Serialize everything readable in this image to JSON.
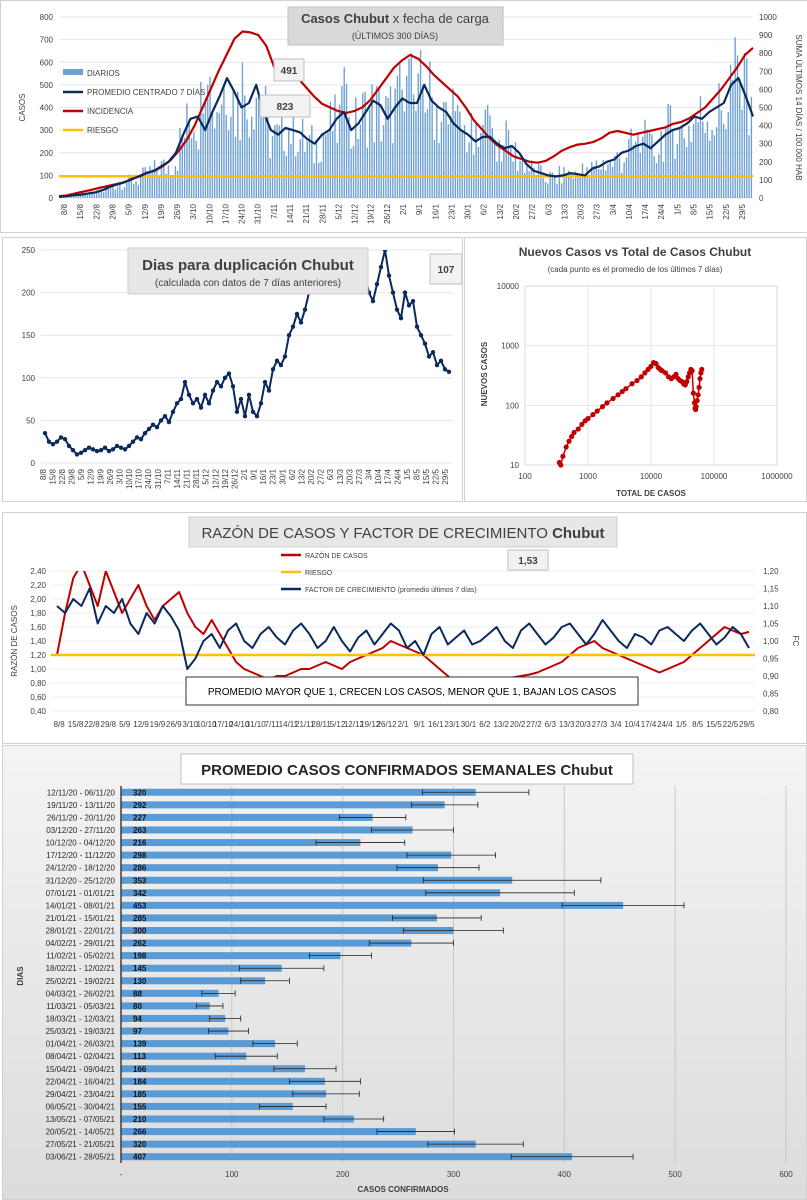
{
  "colors": {
    "diarios": "#6ea1d4",
    "promedio": "#0b2a5c",
    "incidencia": "#c00000",
    "riesgo": "#ffc000",
    "scatter": "#c00000",
    "weekly_bar": "#5b9bd5"
  },
  "chart_data": [
    {
      "type": "bar",
      "title": "Casos Chubut x fecha de carga",
      "title_bold": "Casos Chubut",
      "title_rest": "x fecha de carga",
      "subtitle": "(ÚLTIMOS 300 DÍAS)",
      "ylabel": "CASOS",
      "y2label": "SUMA ÚLTIMOS 14 DÍAS / 100.000 HAB",
      "ylim": [
        0,
        800
      ],
      "y2lim": [
        0,
        1000
      ],
      "yticks": [
        "800",
        "700",
        "600",
        "500",
        "400",
        "300",
        "200",
        "100",
        "0"
      ],
      "y2ticks": [
        "1000",
        "900",
        "800",
        "700",
        "600",
        "500",
        "400",
        "300",
        "200",
        "100",
        "0"
      ],
      "x_ticks": [
        "8/8",
        "15/8",
        "22/8",
        "29/8",
        "5/9",
        "12/9",
        "19/9",
        "26/9",
        "3/10",
        "10/10",
        "17/10",
        "24/10",
        "31/10",
        "7/11",
        "14/11",
        "21/11",
        "28/11",
        "5/12",
        "12/12",
        "19/12",
        "26/12",
        "2/1",
        "9/1",
        "16/1",
        "23/1",
        "30/1",
        "6/2",
        "13/2",
        "20/2",
        "27/2",
        "6/3",
        "13/3",
        "20/3",
        "27/3",
        "3/4",
        "10/4",
        "17/4",
        "24/4",
        "1/5",
        "8/5",
        "15/5",
        "22/5",
        "29/5"
      ],
      "legend": [
        "DIARIOS",
        "PROMEDIO CENTRADO 7 DÍAS",
        "INCIDENCIA",
        "RIESGO"
      ],
      "annotations": [
        "491",
        "823"
      ],
      "riesgo_value": 120,
      "series": [
        {
          "name": "PROMEDIO CENTRADO 7 DÍAS",
          "values": [
            5,
            8,
            12,
            15,
            20,
            25,
            35,
            50,
            60,
            70,
            85,
            95,
            110,
            120,
            140,
            160,
            200,
            280,
            350,
            360,
            300,
            380,
            450,
            530,
            470,
            400,
            420,
            500,
            380,
            300,
            280,
            310,
            300,
            290,
            260,
            240,
            280,
            300,
            350,
            380,
            300,
            330,
            380,
            430,
            410,
            350,
            400,
            440,
            420,
            420,
            500,
            430,
            400,
            380,
            330,
            300,
            280,
            250,
            270,
            270,
            240,
            220,
            230,
            200,
            150,
            120,
            110,
            100,
            95,
            100,
            110,
            105,
            100,
            130,
            140,
            160,
            170,
            200,
            210,
            230,
            240,
            220,
            250,
            280,
            300,
            310,
            330,
            360,
            350,
            380,
            400,
            420,
            500,
            530,
            450,
            360
          ]
        },
        {
          "name": "INCIDENCIA",
          "values": [
            10,
            15,
            25,
            35,
            45,
            55,
            65,
            75,
            85,
            100,
            120,
            140,
            150,
            175,
            210,
            260,
            320,
            400,
            500,
            600,
            700,
            790,
            880,
            920,
            915,
            900,
            840,
            720,
            690,
            700,
            660,
            610,
            560,
            520,
            500,
            480,
            470,
            480,
            500,
            540,
            600,
            660,
            720,
            760,
            790,
            770,
            730,
            680,
            640,
            600,
            560,
            500,
            430,
            380,
            330,
            290,
            260,
            230,
            215,
            200,
            195,
            205,
            230,
            260,
            280,
            295,
            300,
            310,
            330,
            360,
            370,
            360,
            350,
            360,
            370,
            380,
            390,
            410,
            420,
            440,
            470,
            500,
            550,
            600,
            660,
            720,
            790,
            830
          ]
        }
      ]
    },
    {
      "type": "line",
      "title": "Dias para duplicación Chubut",
      "subtitle": "(calculada con datos de 7 días anteriores)",
      "annotation": "107",
      "ylim": [
        0,
        250
      ],
      "yticks": [
        "250",
        "200",
        "150",
        "100",
        "50",
        "0"
      ],
      "x_ticks": [
        "8/8",
        "15/8",
        "22/8",
        "29/8",
        "5/9",
        "12/9",
        "19/9",
        "26/9",
        "3/10",
        "10/10",
        "17/10",
        "24/10",
        "31/10",
        "7/11",
        "14/11",
        "21/11",
        "28/11",
        "5/12",
        "12/12",
        "19/12",
        "26/12",
        "2/1",
        "9/1",
        "16/1",
        "23/1",
        "30/1",
        "6/2",
        "13/2",
        "20/2",
        "27/2",
        "6/3",
        "13/3",
        "20/3",
        "27/3",
        "3/4",
        "10/4",
        "17/4",
        "24/4",
        "1/5",
        "8/5",
        "15/5",
        "22/5",
        "29/5"
      ],
      "values": [
        35,
        25,
        22,
        25,
        30,
        28,
        20,
        15,
        10,
        12,
        15,
        18,
        16,
        14,
        15,
        18,
        14,
        16,
        20,
        18,
        16,
        20,
        25,
        30,
        28,
        35,
        40,
        45,
        42,
        50,
        55,
        48,
        60,
        70,
        75,
        95,
        80,
        70,
        75,
        65,
        80,
        70,
        85,
        95,
        90,
        100,
        105,
        90,
        60,
        75,
        55,
        80,
        60,
        55,
        70,
        95,
        85,
        110,
        120,
        115,
        125,
        150,
        160,
        175,
        165,
        180,
        200,
        210,
        215,
        220,
        230,
        225,
        240,
        260,
        270,
        250,
        230,
        250,
        260,
        240,
        220,
        200,
        190,
        210,
        230,
        250,
        220,
        200,
        180,
        170,
        200,
        185,
        190,
        160,
        150,
        140,
        125,
        130,
        115,
        120,
        110,
        107
      ]
    },
    {
      "type": "scatter",
      "title": "Nuevos Casos vs Total de Casos Chubut",
      "subtitle": "(cada punto es el promedio de los últimos 7 días)",
      "xlabel": "TOTAL DE CASOS",
      "ylabel": "NUEVOS CASOS",
      "x_scale": "log",
      "y_scale": "log",
      "xlim": [
        100,
        1000000
      ],
      "ylim": [
        10,
        10000
      ],
      "xticks": [
        "100",
        "1000",
        "10000",
        "100000",
        "1000000"
      ],
      "yticks": [
        "10000",
        "1000",
        "100",
        "10"
      ],
      "points": [
        [
          350,
          11
        ],
        [
          370,
          10
        ],
        [
          400,
          14
        ],
        [
          450,
          20
        ],
        [
          500,
          25
        ],
        [
          550,
          30
        ],
        [
          600,
          35
        ],
        [
          700,
          40
        ],
        [
          800,
          48
        ],
        [
          900,
          55
        ],
        [
          1000,
          60
        ],
        [
          1200,
          70
        ],
        [
          1400,
          80
        ],
        [
          1700,
          95
        ],
        [
          2000,
          110
        ],
        [
          2500,
          130
        ],
        [
          3000,
          150
        ],
        [
          3500,
          170
        ],
        [
          4000,
          190
        ],
        [
          5000,
          230
        ],
        [
          6000,
          260
        ],
        [
          7000,
          300
        ],
        [
          8000,
          350
        ],
        [
          9000,
          400
        ],
        [
          10000,
          450
        ],
        [
          11000,
          520
        ],
        [
          12000,
          500
        ],
        [
          13000,
          430
        ],
        [
          14000,
          400
        ],
        [
          15000,
          380
        ],
        [
          17000,
          350
        ],
        [
          19000,
          300
        ],
        [
          21000,
          280
        ],
        [
          23000,
          300
        ],
        [
          25000,
          330
        ],
        [
          27000,
          280
        ],
        [
          29000,
          260
        ],
        [
          31000,
          250
        ],
        [
          33000,
          230
        ],
        [
          35000,
          220
        ],
        [
          37000,
          250
        ],
        [
          39000,
          300
        ],
        [
          41000,
          350
        ],
        [
          43000,
          400
        ],
        [
          45000,
          380
        ],
        [
          47000,
          160
        ],
        [
          49000,
          110
        ],
        [
          50000,
          90
        ],
        [
          51000,
          85
        ],
        [
          52000,
          95
        ],
        [
          54000,
          120
        ],
        [
          56000,
          150
        ],
        [
          58000,
          200
        ],
        [
          60000,
          280
        ],
        [
          62000,
          350
        ],
        [
          64000,
          400
        ]
      ]
    },
    {
      "type": "line",
      "title": "RAZÓN DE CASOS Y FACTOR DE CRECIMIENTO Chubut",
      "title_plain": "RAZÓN DE CASOS Y FACTOR DE CRECIMIENTO",
      "title_region": "Chubut",
      "annotation": "1,53",
      "note": "PROMEDIO MAYOR QUE 1, CRECEN LOS CASOS, MENOR QUE 1, BAJAN LOS CASOS",
      "ylabel": "RAZÓN DE CASOS",
      "y2label": "FC",
      "ylim": [
        0.4,
        2.4
      ],
      "y2lim": [
        0.8,
        1.2
      ],
      "yticks": [
        "2,40",
        "2,20",
        "2,00",
        "1,80",
        "1,60",
        "1,40",
        "1,20",
        "1,00",
        "0,80",
        "0,60",
        "0,40"
      ],
      "y2ticks": [
        "1,20",
        "1,15",
        "1,10",
        "1,05",
        "1,00",
        "0,95",
        "0,90",
        "0,85",
        "0,80"
      ],
      "x_ticks": [
        "8/8",
        "15/8",
        "22/8",
        "29/8",
        "5/9",
        "12/9",
        "19/9",
        "26/9",
        "3/10",
        "10/10",
        "17/10",
        "24/10",
        "31/10",
        "7/11",
        "14/11",
        "21/11",
        "28/11",
        "5/12",
        "12/12",
        "19/12",
        "26/12",
        "2/1",
        "9/1",
        "16/1",
        "23/1",
        "30/1",
        "6/2",
        "13/2",
        "20/2",
        "27/2",
        "6/3",
        "13/3",
        "20/3",
        "27/3",
        "3/4",
        "10/4",
        "17/4",
        "24/4",
        "1/5",
        "8/5",
        "15/5",
        "22/5",
        "29/5"
      ],
      "legend": [
        "RAZÓN DE CASOS",
        "RIESGO",
        "FACTOR DE CRECIMIENTO (promedio últimos 7 días)"
      ],
      "riesgo_value": 1.2,
      "series": [
        {
          "name": "RAZÓN DE CASOS",
          "values": [
            1.2,
            1.8,
            2.3,
            2.5,
            2.2,
            1.9,
            2.4,
            2.1,
            1.8,
            2.0,
            2.2,
            1.9,
            1.7,
            1.9,
            2.0,
            2.1,
            1.8,
            1.6,
            1.5,
            1.7,
            1.5,
            1.3,
            1.1,
            1.0,
            0.95,
            0.9,
            0.85,
            0.9,
            0.9,
            0.95,
            1.0,
            1.0,
            1.05,
            1.1,
            1.05,
            1.0,
            1.1,
            1.15,
            1.2,
            1.25,
            1.3,
            1.4,
            1.35,
            1.3,
            1.25,
            1.2,
            1.1,
            1.0,
            0.9,
            0.8,
            0.75,
            0.7,
            0.75,
            0.8,
            0.82,
            0.85,
            0.88,
            0.9,
            0.92,
            0.95,
            1.0,
            1.05,
            1.1,
            1.2,
            1.3,
            1.35,
            1.4,
            1.3,
            1.25,
            1.2,
            1.15,
            1.1,
            1.05,
            1.0,
            0.95,
            1.0,
            1.05,
            1.1,
            1.2,
            1.3,
            1.4,
            1.5,
            1.6,
            1.55,
            1.5,
            1.53
          ]
        },
        {
          "name": "FACTOR DE CRECIMIENTO (promedio últimos 7 días)",
          "values": [
            1.1,
            1.08,
            1.12,
            1.1,
            1.15,
            1.05,
            1.1,
            1.08,
            1.12,
            1.05,
            1.02,
            1.08,
            1.05,
            1.1,
            1.07,
            1.03,
            0.92,
            0.95,
            1.0,
            1.02,
            0.98,
            1.03,
            1.05,
            1.0,
            0.98,
            1.02,
            1.04,
            1.01,
            0.99,
            1.03,
            1.05,
            1.02,
            0.98,
            1.0,
            1.04,
            1.0,
            0.97,
            1.01,
            1.03,
            0.99,
            1.02,
            1.05,
            1.03,
            0.98,
            1.0,
            0.96,
            1.02,
            1.04,
            0.99,
            1.01,
            1.03,
            0.99,
            1.0,
            1.02,
            1.04,
            1.0,
            0.98,
            1.03,
            1.05,
            1.02,
            0.99,
            1.01,
            1.04,
            1.05,
            1.02,
            0.99,
            1.02,
            1.06,
            1.03,
            1.0,
            0.98,
            1.02,
            1.01,
            0.99,
            1.03,
            1.04,
            1.02,
            1.0,
            1.03,
            1.05,
            1.02,
            0.99,
            1.01,
            1.04,
            1.02,
            0.98
          ]
        }
      ]
    },
    {
      "type": "bar",
      "orientation": "horizontal",
      "title": "PROMEDIO CASOS CONFIRMADOS SEMANALES Chubut",
      "ylabel": "DIAS",
      "xlabel": "CASOS CONFIRMADOS",
      "xlim": [
        0,
        600
      ],
      "xticks": [
        "-",
        "100",
        "200",
        "300",
        "400",
        "500",
        "600"
      ],
      "categories": [
        "12/11/20 - 06/11/20",
        "19/11/20 - 13/11/20",
        "26/11/20 - 20/11/20",
        "03/12/20 - 27/11/20",
        "10/12/20 - 04/12/20",
        "17/12/20 - 11/12/20",
        "24/12/20 - 18/12/20",
        "31/12/20 - 25/12/20",
        "07/01/21 - 01/01/21",
        "14/01/21 - 08/01/21",
        "21/01/21 - 15/01/21",
        "28/01/21 - 22/01/21",
        "04/02/21 - 29/01/21",
        "11/02/21 - 05/02/21",
        "18/02/21 - 12/02/21",
        "25/02/21 - 19/02/21",
        "04/03/21 - 26/02/21",
        "11/03/21 - 05/03/21",
        "18/03/21 - 12/03/21",
        "25/03/21 - 19/03/21",
        "01/04/21 - 26/03/21",
        "08/04/21 - 02/04/21",
        "15/04/21 - 09/04/21",
        "22/04/21 - 16/04/21",
        "29/04/21 - 23/04/21",
        "06/05/21 - 30/04/21",
        "13/05/21 - 07/05/21",
        "20/05/21 - 14/05/21",
        "27/05/21 - 21/05/21",
        "03/06/21 - 28/05/21"
      ],
      "values": [
        320,
        292,
        227,
        263,
        216,
        298,
        286,
        353,
        342,
        453,
        285,
        300,
        262,
        198,
        145,
        130,
        88,
        80,
        94,
        97,
        139,
        113,
        166,
        184,
        185,
        155,
        210,
        266,
        320,
        407
      ],
      "value_labels": [
        "320",
        "292",
        "227",
        "263",
        "216",
        "298",
        "286",
        "353",
        "342",
        "453",
        "285",
        "300",
        "262",
        "198",
        "145",
        "130",
        "88",
        "80",
        "94",
        "97",
        "139",
        "113",
        "166",
        "184",
        "185",
        "155",
        "210",
        "266",
        "320",
        "407"
      ],
      "errors": [
        48,
        30,
        30,
        37,
        40,
        40,
        37,
        80,
        67,
        55,
        40,
        45,
        38,
        28,
        38,
        22,
        15,
        12,
        14,
        18,
        20,
        28,
        28,
        32,
        30,
        30,
        27,
        35,
        43,
        55
      ]
    }
  ]
}
